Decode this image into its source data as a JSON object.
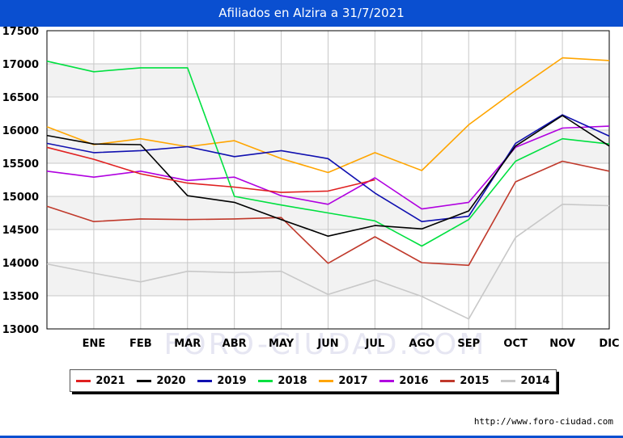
{
  "title": "Afiliados en Alzira a 31/7/2021",
  "watermark": "FORO-CIUDAD.COM",
  "source_url": "http://www.foro-ciudad.com",
  "colors": {
    "title_bar": "#0a4fd0",
    "plot_band": "#f2f2f2",
    "grid": "#c8c8c8"
  },
  "chart_data": {
    "type": "line",
    "title": "Afiliados en Alzira a 31/7/2021",
    "x": [
      "",
      "ENE",
      "FEB",
      "MAR",
      "ABR",
      "MAY",
      "JUN",
      "JUL",
      "AGO",
      "SEP",
      "OCT",
      "NOV",
      "DIC"
    ],
    "ylim": [
      13000,
      17500
    ],
    "yticks": [
      13000,
      13500,
      14000,
      14500,
      15000,
      15500,
      16000,
      16500,
      17000,
      17500
    ],
    "grid": true,
    "legend_position": "bottom",
    "series": [
      {
        "name": "2014",
        "color": "#c8c8c8",
        "values": [
          13980,
          13840,
          13710,
          13870,
          13850,
          13870,
          13520,
          13740,
          13490,
          13150,
          14380,
          14880,
          14860
        ]
      },
      {
        "name": "2015",
        "color": "#c0392b",
        "values": [
          14850,
          14620,
          14660,
          14650,
          14660,
          14680,
          13990,
          14390,
          14000,
          13960,
          15220,
          15530,
          15380
        ]
      },
      {
        "name": "2016",
        "color": "#b000e0",
        "values": [
          15380,
          15290,
          15380,
          15240,
          15290,
          15010,
          14880,
          15280,
          14810,
          14910,
          15740,
          16030,
          16060
        ]
      },
      {
        "name": "2017",
        "color": "#ffa500",
        "values": [
          16050,
          15780,
          15870,
          15750,
          15840,
          15570,
          15360,
          15660,
          15390,
          16080,
          16600,
          17090,
          17050
        ]
      },
      {
        "name": "2018",
        "color": "#00e040",
        "values": [
          17040,
          16880,
          16940,
          16940,
          15000,
          14870,
          14750,
          14630,
          14250,
          14650,
          15530,
          15870,
          15790
        ]
      },
      {
        "name": "2019",
        "color": "#1010b0",
        "values": [
          15800,
          15660,
          15690,
          15750,
          15600,
          15690,
          15570,
          15050,
          14620,
          14700,
          15800,
          16230,
          15910
        ]
      },
      {
        "name": "2020",
        "color": "#000000",
        "values": [
          15920,
          15790,
          15780,
          15010,
          14910,
          14650,
          14400,
          14560,
          14510,
          14780,
          15760,
          16220,
          15760
        ]
      },
      {
        "name": "2021",
        "color": "#e02020",
        "values": [
          15740,
          15560,
          15340,
          15200,
          15140,
          15060,
          15080,
          15250,
          null,
          null,
          null,
          null,
          null
        ]
      }
    ],
    "legend_order": [
      "2021",
      "2020",
      "2019",
      "2018",
      "2017",
      "2016",
      "2015",
      "2014"
    ]
  }
}
